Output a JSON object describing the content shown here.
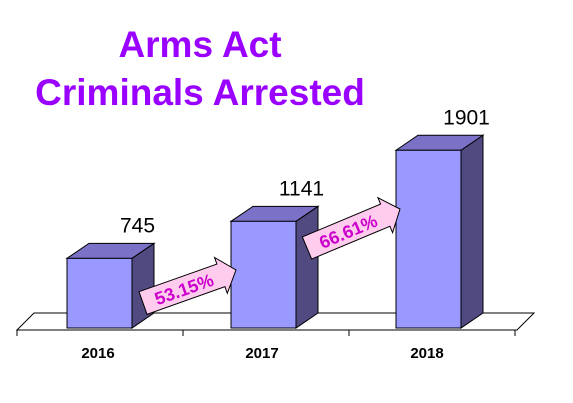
{
  "chart_data": {
    "type": "bar",
    "title": [
      "Arms Act",
      "Criminals Arrested"
    ],
    "categories": [
      "2016",
      "2017",
      "2018"
    ],
    "values": [
      745,
      1141,
      1901
    ],
    "growth_labels": [
      "53.15%",
      "66.61%"
    ],
    "xlabel": "",
    "ylabel": "",
    "ylim": [
      0,
      2000
    ],
    "grid": false,
    "legend": "none",
    "colors": {
      "title": "#9900ff",
      "bar_front": "#9999ff",
      "bar_side": "#504a80",
      "bar_top": "#7b72c8",
      "arrow_fill": "#ffccee",
      "arrow_text": "#cc00cc"
    }
  }
}
